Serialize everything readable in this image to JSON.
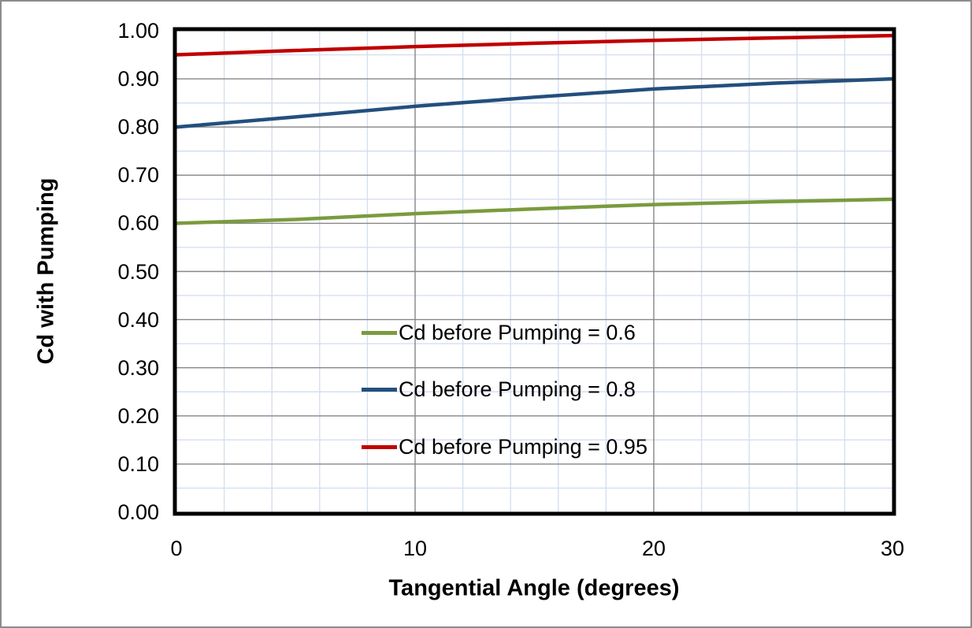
{
  "figure": {
    "background": "#ffffff",
    "outer_border_color": "#8c8c8c"
  },
  "chart_data": {
    "type": "line",
    "title": "",
    "xlabel": "Tangential Angle (degrees)",
    "ylabel": "Cd with Pumping",
    "xlim": [
      0,
      30
    ],
    "ylim": [
      0.0,
      1.0
    ],
    "x": [
      0,
      5,
      10,
      15,
      20,
      25,
      30
    ],
    "series": [
      {
        "name": "Cd before Pumping = 0.6",
        "color": "#7a9b3e",
        "values": [
          0.6,
          0.608,
          0.62,
          0.63,
          0.639,
          0.645,
          0.65
        ]
      },
      {
        "name": "Cd before Pumping = 0.8",
        "color": "#234f7d",
        "values": [
          0.8,
          0.821,
          0.843,
          0.862,
          0.879,
          0.891,
          0.9
        ]
      },
      {
        "name": "Cd before Pumping = 0.95",
        "color": "#c00000",
        "values": [
          0.95,
          0.959,
          0.967,
          0.974,
          0.98,
          0.985,
          0.99
        ]
      }
    ],
    "x_major_ticks": [
      0,
      10,
      20,
      30
    ],
    "x_tick_labels": [
      "0",
      "10",
      "20",
      "30"
    ],
    "x_minor_step": 2,
    "y_major_step": 0.1,
    "y_minor_step": 0.05,
    "y_tick_labels": [
      "0.00",
      "0.10",
      "0.20",
      "0.30",
      "0.40",
      "0.50",
      "0.60",
      "0.70",
      "0.80",
      "0.90",
      "1.00"
    ],
    "grid": {
      "major_color": "#868686",
      "minor_color": "#d5dfef",
      "major_on": true,
      "minor_on": true
    },
    "axis_border_color": "#000000",
    "line_width": 4.5,
    "legend": {
      "position": "inside-center-left",
      "entries": [
        "Cd before Pumping = 0.6",
        "Cd before Pumping = 0.8",
        "Cd before Pumping = 0.95"
      ]
    }
  }
}
